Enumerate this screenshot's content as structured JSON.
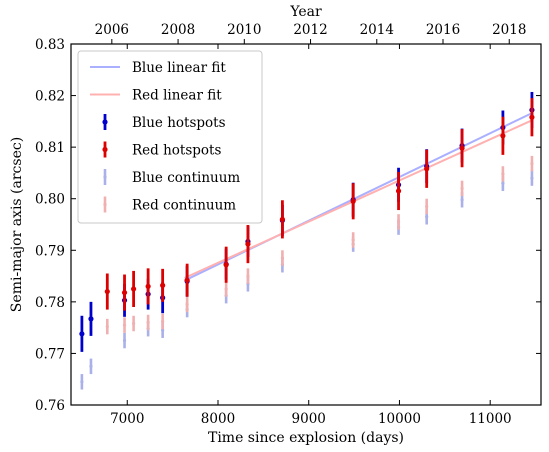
{
  "chart_data": {
    "type": "scatter",
    "xlabel": "Time since explosion (days)",
    "ylabel": "Semi-major axis (arcsec)",
    "top_xlabel": "Year",
    "xlim": [
      6380,
      11560
    ],
    "ylim": [
      0.76,
      0.83
    ],
    "xticks": [
      7000,
      8000,
      9000,
      10000,
      11000
    ],
    "xtick_labels": [
      "7000",
      "8000",
      "9000",
      "10000",
      "11000"
    ],
    "yticks": [
      0.76,
      0.77,
      0.78,
      0.79,
      0.8,
      0.81,
      0.82,
      0.83
    ],
    "ytick_labels": [
      "0.76",
      "0.77",
      "0.78",
      "0.79",
      "0.80",
      "0.81",
      "0.82",
      "0.83"
    ],
    "top_xticks": [
      6830,
      7560,
      8290,
      9020,
      9750,
      10480,
      11210
    ],
    "top_xtick_labels": [
      "2006",
      "2008",
      "2010",
      "2012",
      "2014",
      "2016",
      "2018"
    ],
    "grid": false,
    "legend_position": "upper-left",
    "colors": {
      "blue": "#0000cc",
      "red": "#dd0000",
      "blue_fit": "#aab0ff",
      "red_fit": "#ffb0b0",
      "blue_cont": "#aab0e8",
      "red_cont": "#f0b0b0"
    },
    "series": [
      {
        "name": "Blue linear fit",
        "kind": "line",
        "color_key": "blue_fit",
        "x": [
          7640,
          11460
        ],
        "y": [
          0.7842,
          0.8166
        ]
      },
      {
        "name": "Red linear fit",
        "kind": "line",
        "color_key": "red_fit",
        "x": [
          7640,
          11460
        ],
        "y": [
          0.7847,
          0.8152
        ]
      },
      {
        "name": "Blue hotspots",
        "kind": "errorbar",
        "color_key": "blue",
        "x": [
          6500,
          6600,
          6970,
          7230,
          7390,
          7660,
          8090,
          8330,
          8710,
          9490,
          9990,
          10300,
          10690,
          11140,
          11460
        ],
        "y": [
          0.7738,
          0.7767,
          0.7803,
          0.7815,
          0.7808,
          0.784,
          0.7873,
          0.7917,
          0.7958,
          0.7998,
          0.8027,
          0.8063,
          0.8103,
          0.8138,
          0.8172
        ],
        "err": [
          0.0035,
          0.0033,
          0.0032,
          0.003,
          0.003,
          0.003,
          0.003,
          0.003,
          0.003,
          0.0033,
          0.0033,
          0.0033,
          0.0033,
          0.0033,
          0.0035
        ]
      },
      {
        "name": "Red hotspots",
        "kind": "errorbar",
        "color_key": "red",
        "x": [
          6780,
          6970,
          7070,
          7230,
          7390,
          7660,
          8090,
          8330,
          8710,
          9490,
          9990,
          10300,
          10690,
          11140,
          11460
        ],
        "y": [
          0.782,
          0.7818,
          0.7825,
          0.783,
          0.7832,
          0.7842,
          0.7872,
          0.7912,
          0.796,
          0.7995,
          0.8015,
          0.8058,
          0.8098,
          0.8122,
          0.8158
        ],
        "err": [
          0.0035,
          0.0035,
          0.0035,
          0.0035,
          0.0032,
          0.0032,
          0.0035,
          0.0037,
          0.0037,
          0.0035,
          0.0037,
          0.0037,
          0.0037,
          0.0037,
          0.0037
        ]
      },
      {
        "name": "Blue continuum",
        "kind": "errorbar",
        "color_key": "blue_cont",
        "x": [
          6500,
          6600,
          6970,
          7230,
          7390,
          7660,
          8090,
          8330,
          8710,
          9490,
          9990,
          10300,
          10690,
          11140,
          11460
        ],
        "y": [
          0.7645,
          0.7675,
          0.7725,
          0.7748,
          0.7745,
          0.7785,
          0.7812,
          0.7835,
          0.7872,
          0.7912,
          0.7945,
          0.7965,
          0.7998,
          0.803,
          0.804
        ],
        "err": [
          0.0015,
          0.0015,
          0.0015,
          0.0015,
          0.0015,
          0.0015,
          0.0015,
          0.0015,
          0.0015,
          0.0015,
          0.0015,
          0.0015,
          0.0015,
          0.0015,
          0.0015
        ]
      },
      {
        "name": "Red continuum",
        "kind": "errorbar",
        "color_key": "red_cont",
        "x": [
          6780,
          6970,
          7070,
          7230,
          7390,
          7660,
          8090,
          8330,
          8710,
          9490,
          9990,
          10300,
          10690,
          11140,
          11460
        ],
        "y": [
          0.7752,
          0.7755,
          0.7758,
          0.776,
          0.7762,
          0.7795,
          0.7825,
          0.785,
          0.7885,
          0.792,
          0.7955,
          0.7985,
          0.802,
          0.8048,
          0.8068
        ],
        "err": [
          0.0015,
          0.0015,
          0.0015,
          0.0015,
          0.0015,
          0.0015,
          0.0015,
          0.0015,
          0.0015,
          0.0015,
          0.0015,
          0.0015,
          0.0015,
          0.0015,
          0.0015
        ]
      }
    ]
  }
}
